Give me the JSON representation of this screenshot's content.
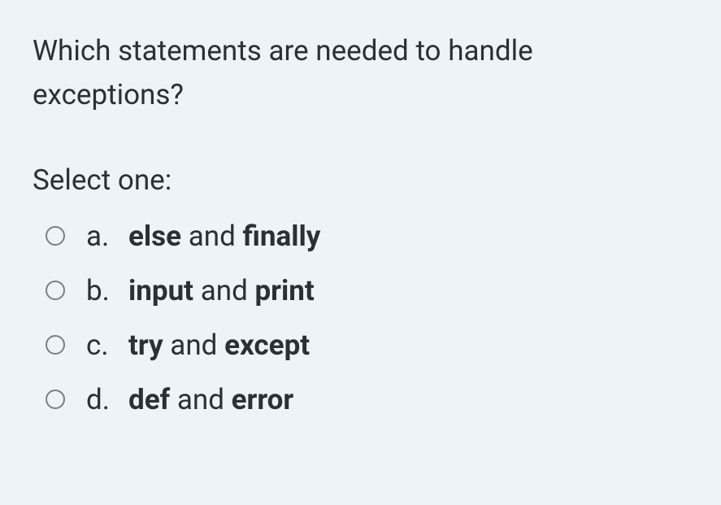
{
  "question_text": "Which statements are needed to handle exceptions?",
  "select_prompt": "Select one:",
  "options": [
    {
      "letter": "a.",
      "word1": "else",
      "join": " and ",
      "word2": "finally"
    },
    {
      "letter": "b.",
      "word1": "input",
      "join": " and ",
      "word2": "print"
    },
    {
      "letter": "c.",
      "word1": "try",
      "join": " and ",
      "word2": "except"
    },
    {
      "letter": "d.",
      "word1": "def",
      "join": " and ",
      "word2": "error"
    }
  ],
  "style": {
    "background_color": "#eef3f7",
    "text_color": "#2b3036",
    "radio_border_color": "#7a7f85",
    "font_size_pt": 26,
    "bold_weight": 700
  }
}
